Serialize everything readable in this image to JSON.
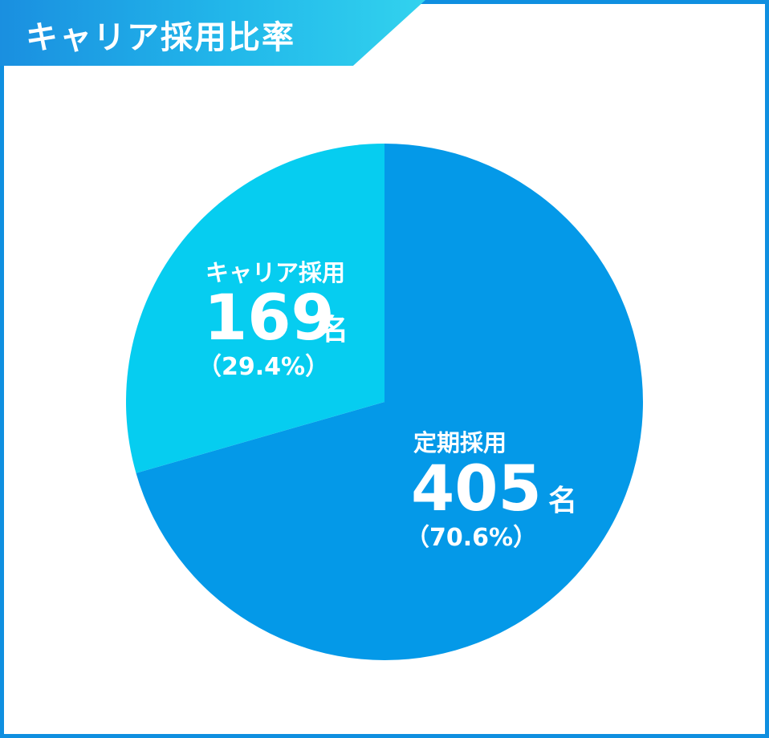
{
  "title": "キャリア採用比率",
  "chart_data": {
    "type": "pie",
    "title": "キャリア採用比率",
    "unit": "名",
    "slices": [
      {
        "name": "定期採用",
        "count": 405,
        "count_label": "405",
        "percent": 70.6,
        "percent_label": "（70.6%）",
        "color": "#0499e8"
      },
      {
        "name": "キャリア採用",
        "count": 169,
        "count_label": "169",
        "percent": 29.4,
        "percent_label": "（29.4%）",
        "color": "#06cdf0"
      }
    ]
  }
}
